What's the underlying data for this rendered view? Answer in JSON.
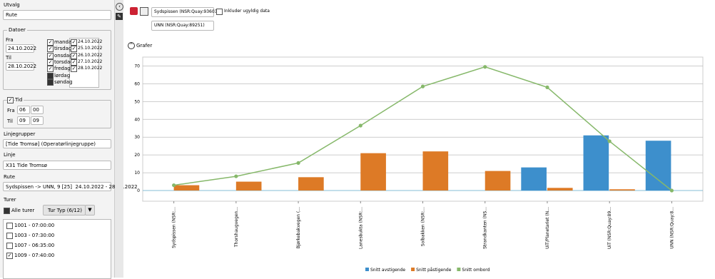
{
  "left_panel": {
    "title": "Utvalg",
    "mode": "Rute",
    "dates": {
      "title": "Datoer",
      "from_label": "Fra",
      "from": "24.10.2022",
      "to_label": "Til",
      "to": "28.10.2022",
      "days": [
        {
          "name": "mandag",
          "checked": true,
          "date": "24.10.2022"
        },
        {
          "name": "tirsdag",
          "checked": true,
          "date": "25.10.2022"
        },
        {
          "name": "onsdag",
          "checked": true,
          "date": "26.10.2022"
        },
        {
          "name": "torsdag",
          "checked": true,
          "date": "27.10.2022"
        },
        {
          "name": "fredag",
          "checked": true,
          "date": "28.10.2022"
        },
        {
          "name": "lørdag",
          "checked": false
        },
        {
          "name": "søndag",
          "checked": false
        }
      ]
    },
    "time": {
      "label": "Tid",
      "checked": true,
      "from_label": "Fra",
      "from_hour": "06",
      "from_min": "00",
      "to_label": "Til",
      "to_hour": "09",
      "to_min": "09"
    },
    "line_groups": {
      "label": "Linjegrupper",
      "value": "[Tide Tromsø] (Operatørlinjegruppe)"
    },
    "line": {
      "label": "Linje",
      "value": "X31 Tide Tromsø"
    },
    "route": {
      "label": "Rute",
      "value": "Sydspissen -> UNN, 9 [25]  24.10.2022 - 28.10.2022"
    },
    "trips": {
      "label": "Turer",
      "all_label": "Alle turer",
      "type_button": "Tur Typ (6/12)",
      "items": [
        {
          "label": "1001 - 07:00:00",
          "checked": false
        },
        {
          "label": "1003 - 07:30:00",
          "checked": false
        },
        {
          "label": "1007 - 06:35:00",
          "checked": false
        },
        {
          "label": "1009 - 07:40:00",
          "checked": true
        }
      ]
    }
  },
  "toolbar": {
    "from_stop": "Sydspissen (NSR:Quay:93603)",
    "include_invalid": "Inkluder ugyldig data",
    "to_stop": "UNN (NSR:Quay:89251)",
    "graphs": "Grafer"
  },
  "chart_data": {
    "type": "bar-line",
    "categories": [
      "Sydspissen (NSR:...",
      "Thorshaugvegen...",
      "Bjørkebakvegen (...",
      "Lanesbukta (NSR:...",
      "Solbakken (NSR:...",
      "Strandkanten (NS...",
      "UiT/Planetariet (N...",
      "UiT (NSR:Quay:89...",
      "UNN (NSR:Quay:8..."
    ],
    "series": [
      {
        "name": "Snitt avstigende",
        "type": "bar",
        "color": "#3d8fcc",
        "values": [
          0,
          0,
          0,
          0,
          0,
          0,
          13,
          31,
          28
        ]
      },
      {
        "name": "Snitt påstigende",
        "type": "bar",
        "color": "#dd7a26",
        "values": [
          3,
          5,
          7.5,
          21,
          22,
          11,
          1.5,
          0.7,
          0
        ]
      },
      {
        "name": "Snitt ombord",
        "type": "line",
        "color": "#86b86a",
        "values": [
          3,
          8,
          15.5,
          36.5,
          58.5,
          69.5,
          58,
          27.7,
          0
        ]
      }
    ],
    "ylim": [
      -6,
      75
    ],
    "yticks": [
      0,
      10,
      20,
      30,
      40,
      50,
      60,
      70
    ],
    "grid": true,
    "legend": "bottom"
  }
}
